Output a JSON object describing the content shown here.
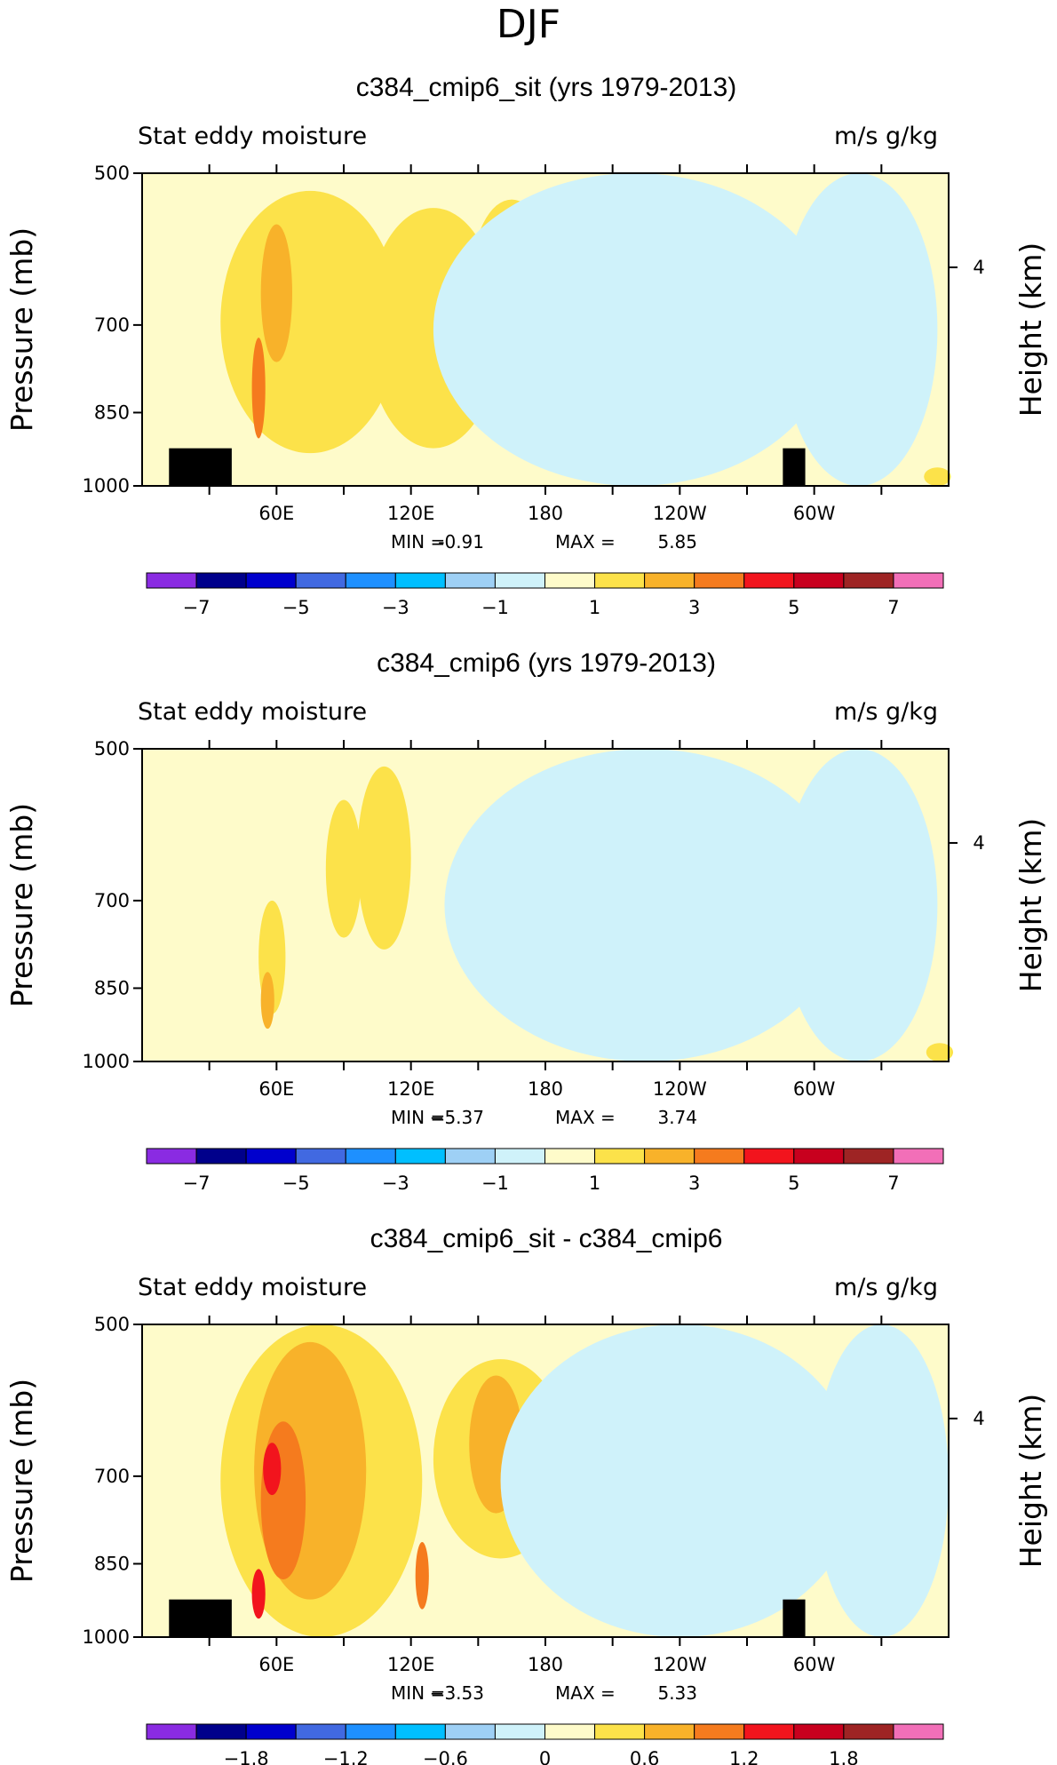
{
  "figure_title": "DJF",
  "chart_data": [
    {
      "type": "heatmap",
      "title": "c384_cmip6_sit (yrs 1979-2013)",
      "field_label": "Stat eddy moisture",
      "units": "m/s g/kg",
      "ylabel": "Pressure (mb)",
      "ylabel_right": "Height (km)",
      "yticks": [
        "500",
        "700",
        "850",
        "1000"
      ],
      "yticks_right": [
        "4"
      ],
      "xticks": [
        "60E",
        "120E",
        "180",
        "120W",
        "60W"
      ],
      "min_label": "MIN =",
      "min_value": "-0.91",
      "max_label": "MAX =",
      "max_value": "5.85",
      "colorbar_ticks": [
        "−7",
        "−5",
        "−3",
        "−1",
        "1",
        "3",
        "5",
        "7"
      ],
      "contour_levels": [
        -8,
        -7,
        -6,
        -5,
        -4,
        -3,
        -2,
        -1,
        0,
        1,
        2,
        3,
        4,
        5,
        6,
        7,
        8
      ],
      "colors": [
        "#8a2be2",
        "#00008b",
        "#0000cd",
        "#4169e1",
        "#1e90ff",
        "#00bfff",
        "#9ed0f5",
        "#cff2fa",
        "#fefbca",
        "#fce24a",
        "#f8b22a",
        "#f57b1e",
        "#f2141d",
        "#c8001e",
        "#9e2424",
        "#f26fb8"
      ]
    },
    {
      "type": "heatmap",
      "title": "c384_cmip6 (yrs 1979-2013)",
      "field_label": "Stat eddy moisture",
      "units": "m/s g/kg",
      "ylabel": "Pressure (mb)",
      "ylabel_right": "Height (km)",
      "yticks": [
        "500",
        "700",
        "850",
        "1000"
      ],
      "yticks_right": [
        "4"
      ],
      "xticks": [
        "60E",
        "120E",
        "180",
        "120W",
        "60W"
      ],
      "min_label": "MIN =",
      "min_value": "−5.37",
      "max_label": "MAX =",
      "max_value": "3.74",
      "colorbar_ticks": [
        "−7",
        "−5",
        "−3",
        "−1",
        "1",
        "3",
        "5",
        "7"
      ],
      "contour_levels": [
        -8,
        -7,
        -6,
        -5,
        -4,
        -3,
        -2,
        -1,
        0,
        1,
        2,
        3,
        4,
        5,
        6,
        7,
        8
      ],
      "colors": [
        "#8a2be2",
        "#00008b",
        "#0000cd",
        "#4169e1",
        "#1e90ff",
        "#00bfff",
        "#9ed0f5",
        "#cff2fa",
        "#fefbca",
        "#fce24a",
        "#f8b22a",
        "#f57b1e",
        "#f2141d",
        "#c8001e",
        "#9e2424",
        "#f26fb8"
      ]
    },
    {
      "type": "heatmap",
      "title": "c384_cmip6_sit - c384_cmip6",
      "field_label": "Stat eddy moisture",
      "units": "m/s g/kg",
      "ylabel": "Pressure (mb)",
      "ylabel_right": "Height (km)",
      "yticks": [
        "500",
        "700",
        "850",
        "1000"
      ],
      "yticks_right": [
        "4"
      ],
      "xticks": [
        "60E",
        "120E",
        "180",
        "120W",
        "60W"
      ],
      "min_label": "MIN =",
      "min_value": "−3.53",
      "max_label": "MAX =",
      "max_value": "5.33",
      "colorbar_ticks": [
        "−1.8",
        "−1.2",
        "−0.6",
        "0",
        "0.6",
        "1.2",
        "1.8"
      ],
      "contour_levels": [
        -2.4,
        -2.1,
        -1.8,
        -1.5,
        -1.2,
        -0.9,
        -0.6,
        -0.3,
        0,
        0.3,
        0.6,
        0.9,
        1.2,
        1.5,
        1.8,
        2.1,
        2.4
      ],
      "colors": [
        "#8a2be2",
        "#00008b",
        "#0000cd",
        "#4169e1",
        "#1e90ff",
        "#00bfff",
        "#9ed0f5",
        "#cff2fa",
        "#fefbca",
        "#fce24a",
        "#f8b22a",
        "#f57b1e",
        "#f2141d",
        "#c8001e",
        "#9e2424",
        "#f26fb8"
      ]
    }
  ]
}
